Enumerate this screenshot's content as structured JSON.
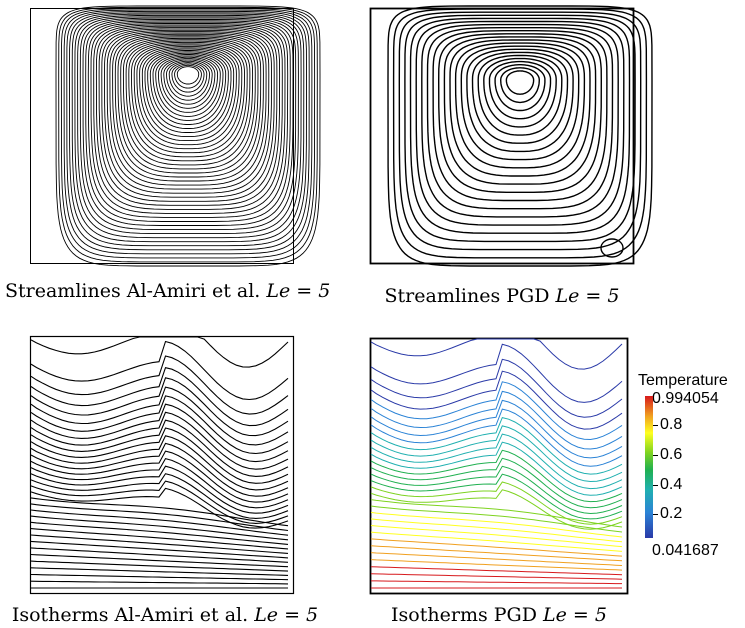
{
  "captions": {
    "tl": {
      "text": "Streamlines Al-Amiri et al.",
      "math": "Le = 5"
    },
    "tr": {
      "text": "Streamlines PGD",
      "math": "Le = 5"
    },
    "bl": {
      "text": "Isotherms Al-Amiri et al.",
      "math": "Le = 5"
    },
    "br": {
      "text": "Isotherms PGD",
      "math": "Le = 5"
    }
  },
  "colorbar": {
    "title": "Temperature",
    "max_label": "0.994054",
    "min_label": "0.041687",
    "ticks": [
      "0.8",
      "0.6",
      "0.4",
      "0.2"
    ],
    "tick_values": [
      0.8,
      0.6,
      0.4,
      0.2
    ],
    "max": 0.994054,
    "min": 0.041687
  },
  "colors": {
    "line": "#000000",
    "palette": [
      "#2a3aa8",
      "#2b83d6",
      "#20b0b0",
      "#20b050",
      "#7ed320",
      "#ffff20",
      "#f0a020",
      "#d7191c"
    ]
  }
}
